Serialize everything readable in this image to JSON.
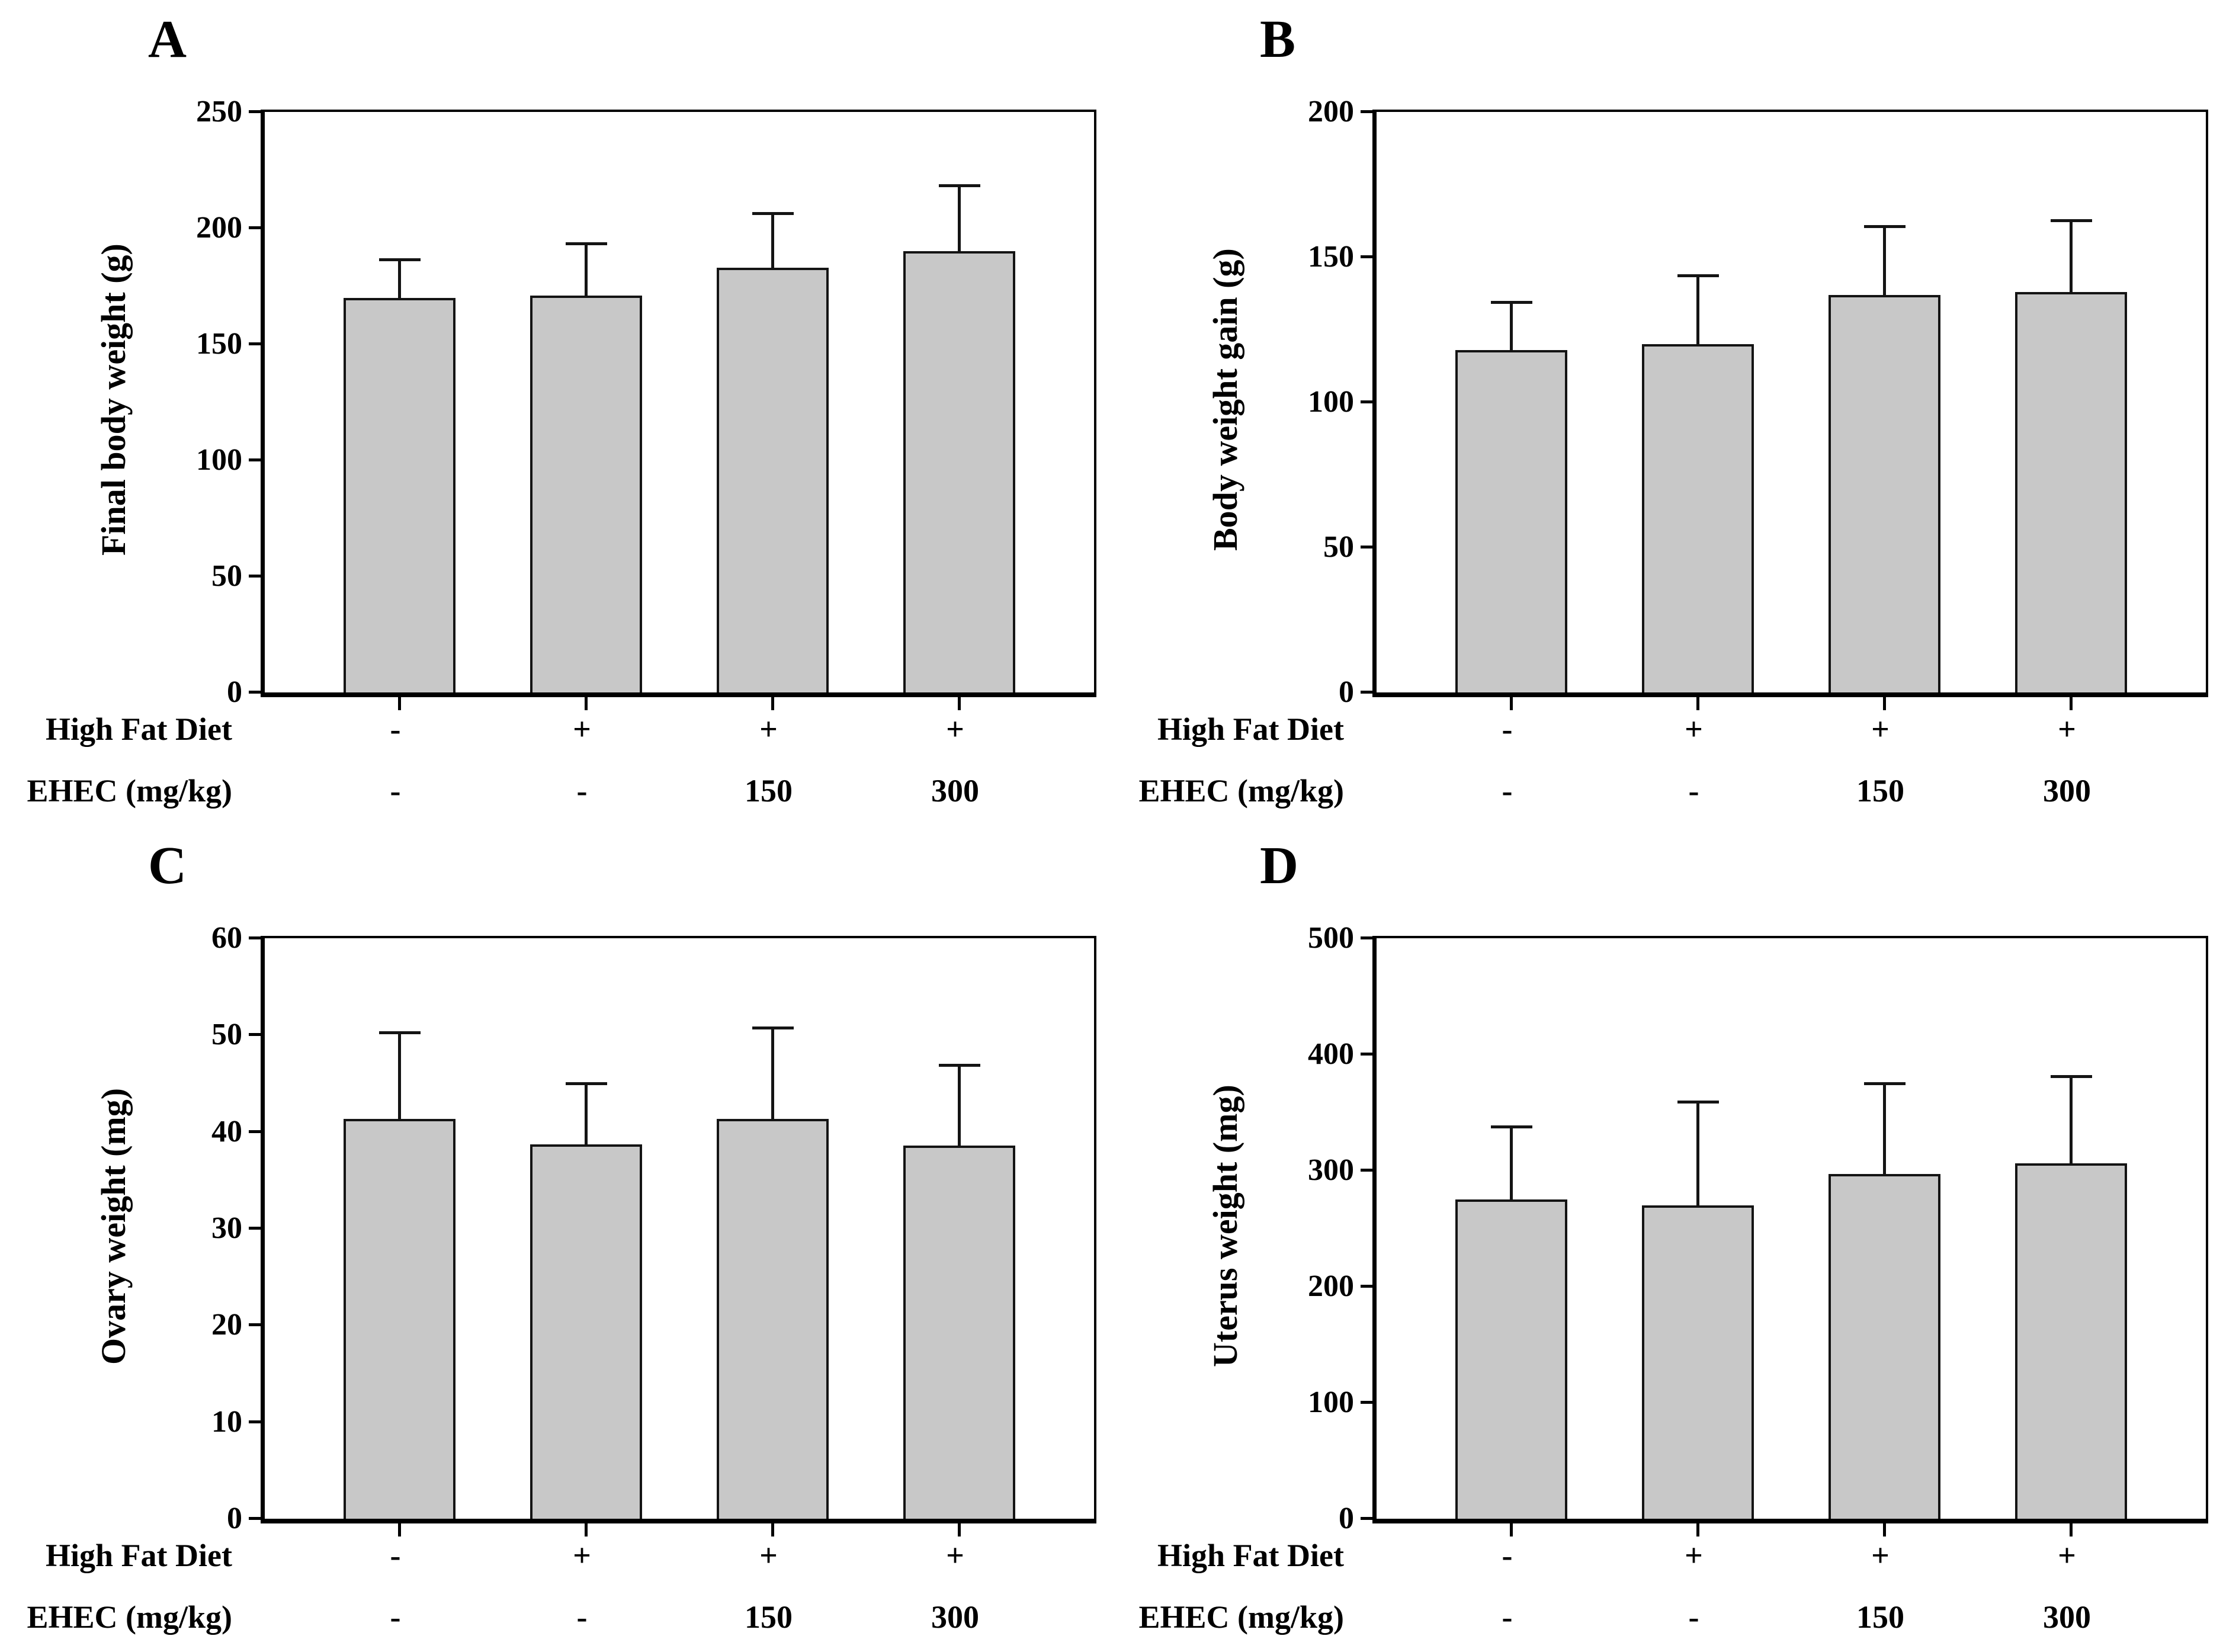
{
  "figure": {
    "background": "#ffffff",
    "bar_fill": "#c8c8c8",
    "line_color": "#141414",
    "axis_color": "#000000"
  },
  "chart_data": [
    {
      "panel": "A",
      "type": "bar",
      "ylabel": "Final body weight (g)",
      "ylim": [
        0,
        250
      ],
      "yticks": [
        0,
        50,
        100,
        150,
        200,
        250
      ],
      "values": [
        170,
        171,
        183,
        190
      ],
      "errors_upper": [
        17,
        23,
        24,
        29
      ],
      "grid": "off",
      "legend": "none",
      "xrows": [
        {
          "label": "High Fat Diet",
          "cells": [
            "-",
            "+",
            "+",
            "+"
          ]
        },
        {
          "label": "EHEC (mg/kg)",
          "cells": [
            "-",
            "-",
            "150",
            "300"
          ]
        }
      ]
    },
    {
      "panel": "B",
      "type": "bar",
      "ylabel": "Body weight gain (g)",
      "ylim": [
        0,
        200
      ],
      "yticks": [
        0,
        50,
        100,
        150,
        200
      ],
      "values": [
        118,
        120,
        137,
        138
      ],
      "errors_upper": [
        17,
        24,
        24,
        25
      ],
      "grid": "off",
      "legend": "none",
      "xrows": [
        {
          "label": "High Fat Diet",
          "cells": [
            "-",
            "+",
            "+",
            "+"
          ]
        },
        {
          "label": "EHEC (mg/kg)",
          "cells": [
            "-",
            "-",
            "150",
            "300"
          ]
        }
      ]
    },
    {
      "panel": "C",
      "type": "bar",
      "ylabel": "Ovary weight (mg)",
      "ylim": [
        0,
        60
      ],
      "yticks": [
        0,
        10,
        20,
        30,
        40,
        50,
        60
      ],
      "values": [
        41.3,
        38.7,
        41.3,
        38.6
      ],
      "errors_upper": [
        9.1,
        6.4,
        9.6,
        8.4
      ],
      "grid": "off",
      "legend": "none",
      "xrows": [
        {
          "label": "High Fat Diet",
          "cells": [
            "-",
            "+",
            "+",
            "+"
          ]
        },
        {
          "label": "EHEC (mg/kg)",
          "cells": [
            "-",
            "-",
            "150",
            "300"
          ]
        }
      ]
    },
    {
      "panel": "D",
      "type": "bar",
      "ylabel": "Uterus weight (mg)",
      "ylim": [
        0,
        500
      ],
      "yticks": [
        0,
        100,
        200,
        300,
        400,
        500
      ],
      "values": [
        275,
        270,
        297,
        306
      ],
      "errors_upper": [
        64,
        90,
        79,
        76
      ],
      "grid": "off",
      "legend": "none",
      "xrows": [
        {
          "label": "High Fat Diet",
          "cells": [
            "-",
            "+",
            "+",
            "+"
          ]
        },
        {
          "label": "EHEC (mg/kg)",
          "cells": [
            "-",
            "-",
            "150",
            "300"
          ]
        }
      ]
    }
  ]
}
